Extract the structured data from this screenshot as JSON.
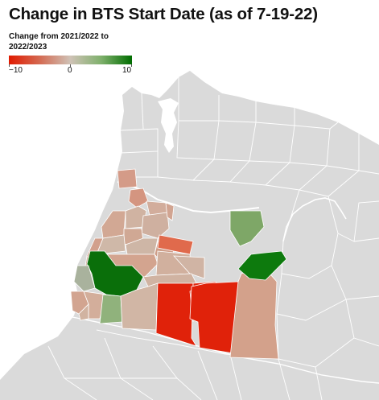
{
  "title": "Change in BTS Start Date (as of 7-19-22)",
  "legend": {
    "title": "Change from 2021/2022 to 2022/2023",
    "min_label": "−10",
    "mid_label": "0",
    "max_label": "10",
    "color_low": "#e01a00",
    "color_mid": "#cfc2b6",
    "color_high": "#006d00"
  },
  "colors": {
    "land": "#dadada",
    "borders": "#ffffff",
    "water": "#ffffff"
  }
}
